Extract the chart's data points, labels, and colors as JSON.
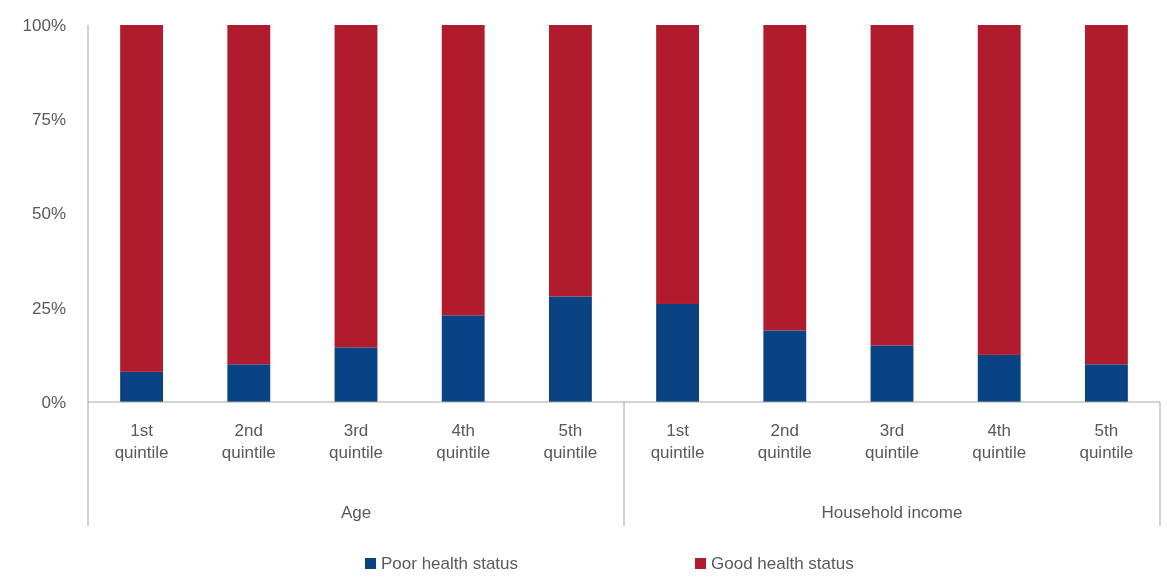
{
  "chart_data": {
    "type": "bar",
    "stacked": true,
    "categories": [
      "1st quintile",
      "2nd quintile",
      "3rd quintile",
      "4th quintile",
      "5th quintile",
      "1st quintile",
      "2nd quintile",
      "3rd quintile",
      "4th quintile",
      "5th quintile"
    ],
    "series": [
      {
        "name": "Poor health status",
        "color": "#0a4383",
        "values": [
          8,
          10,
          14.5,
          23,
          28,
          26,
          19,
          15,
          12.5,
          10
        ]
      },
      {
        "name": "Good health status",
        "color": "#b01c2e",
        "values": [
          92,
          90,
          85.5,
          77,
          72,
          74,
          81,
          85,
          87.5,
          90
        ]
      }
    ],
    "annotations": [
      "Age",
      "Household income"
    ],
    "ylim": [
      0,
      100
    ],
    "yticks": [
      {
        "value": 0,
        "label": "0%"
      },
      {
        "value": 25,
        "label": "25%"
      },
      {
        "value": 50,
        "label": "50%"
      },
      {
        "value": 75,
        "label": "75%"
      },
      {
        "value": 100,
        "label": "100%"
      }
    ],
    "grid": false,
    "legend": "bottom"
  }
}
